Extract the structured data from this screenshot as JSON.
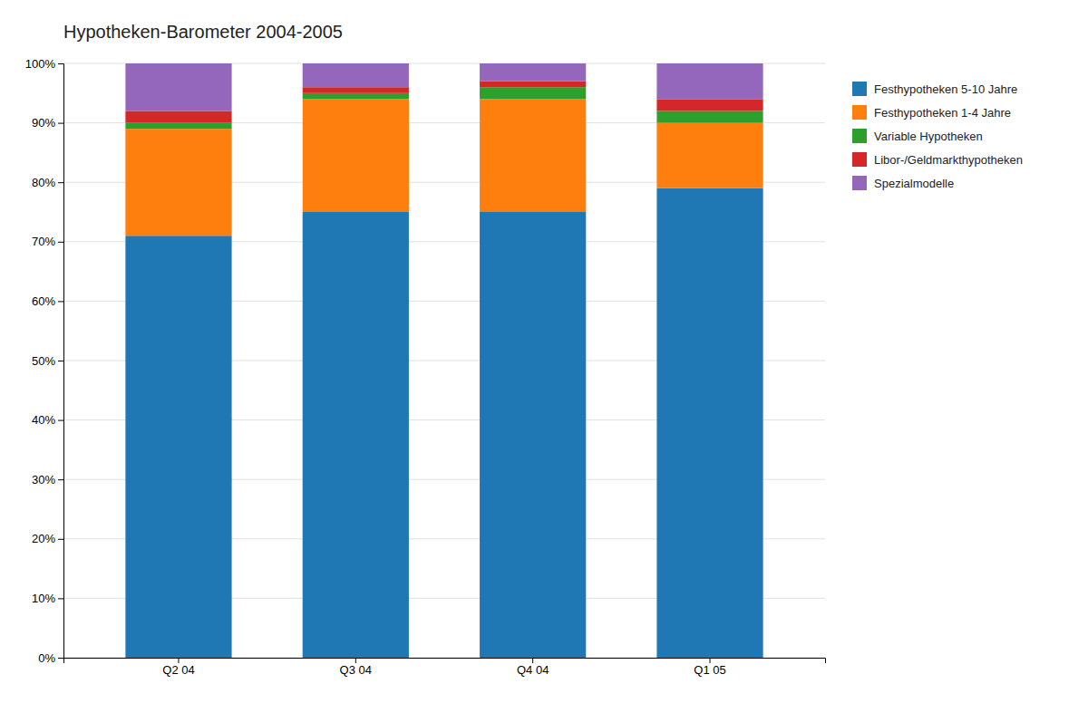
{
  "chart_data": {
    "type": "bar",
    "stacked": true,
    "title": "Hypotheken-Barometer 2004-2005",
    "categories": [
      "Q2 04",
      "Q3 04",
      "Q4 04",
      "Q1 05"
    ],
    "series": [
      {
        "name": "Festhypotheken 5-10 Jahre",
        "values": [
          71,
          75,
          75,
          79
        ]
      },
      {
        "name": "Festhypotheken 1-4 Jahre",
        "values": [
          18,
          19,
          19,
          11
        ]
      },
      {
        "name": "Variable Hypotheken",
        "values": [
          1,
          1,
          2,
          2
        ]
      },
      {
        "name": "Libor-/Geldmarkthypotheken",
        "values": [
          2,
          1,
          1,
          2
        ]
      },
      {
        "name": "Spezialmodelle",
        "values": [
          8,
          4,
          3,
          6
        ]
      }
    ],
    "ylim": [
      0,
      100
    ],
    "yticks": [
      {
        "value": 0,
        "label": "0%"
      },
      {
        "value": 10,
        "label": "10%"
      },
      {
        "value": 20,
        "label": "20%"
      },
      {
        "value": 30,
        "label": "30%"
      },
      {
        "value": 40,
        "label": "40%"
      },
      {
        "value": 50,
        "label": "50%"
      },
      {
        "value": 60,
        "label": "60%"
      },
      {
        "value": 70,
        "label": "70%"
      },
      {
        "value": 80,
        "label": "80%"
      },
      {
        "value": 90,
        "label": "90%"
      },
      {
        "value": 100,
        "label": "100%"
      }
    ],
    "grid": true,
    "legend": "right"
  }
}
